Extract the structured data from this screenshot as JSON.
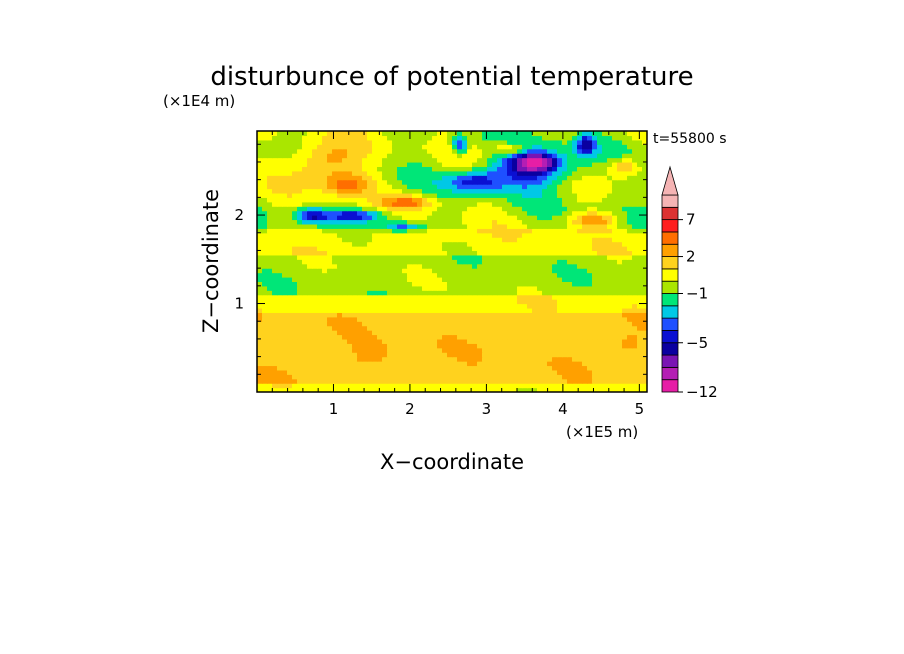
{
  "chart_data": {
    "type": "heatmap",
    "title": "disturbunce of potential temperature",
    "time_label": "t=55800 s",
    "xlabel": "X−coordinate",
    "ylabel": "Z−coordinate",
    "x_unit": "(×1E5 m)",
    "y_unit": "(×1E4 m)",
    "xlim": [
      0,
      5.1
    ],
    "ylim": [
      0,
      2.95
    ],
    "x_ticks": [
      1,
      2,
      3,
      4,
      5
    ],
    "x_tick_labels": [
      "1",
      "2",
      "3",
      "4",
      "5"
    ],
    "y_ticks": [
      1,
      2
    ],
    "y_tick_labels": [
      "1",
      "2"
    ],
    "colorbar": {
      "levels": [
        -12,
        -10,
        -8,
        -6,
        -5,
        -4,
        -3,
        -2,
        -1,
        0,
        1,
        2,
        3,
        5,
        7,
        9,
        11
      ],
      "colors": [
        "#e61ea6",
        "#b41eb4",
        "#7a14b4",
        "#0a00a0",
        "#0a10d2",
        "#1e50ff",
        "#00c8e6",
        "#00e678",
        "#aae600",
        "#ffff00",
        "#ffd21e",
        "#ffa000",
        "#ff6e00",
        "#ff1e1e",
        "#dc3232",
        "#f5b4b4"
      ],
      "tick_values": [
        -12,
        -5,
        -1,
        2,
        7
      ],
      "tick_labels": [
        "−12",
        "−5",
        "−1",
        "2",
        "7"
      ],
      "extend": "max"
    },
    "field": {
      "description_rows": "z bands from bottom to top",
      "bands": [
        {
          "z_range": [
            0.0,
            0.12
          ],
          "value": 0.5
        },
        {
          "z_range": [
            0.12,
            0.9
          ],
          "value": 1.6
        },
        {
          "z_range": [
            0.9,
            1.1
          ],
          "value": 0.6
        },
        {
          "z_range": [
            1.1,
            1.55
          ],
          "value": -0.5
        },
        {
          "z_range": [
            1.55,
            1.85
          ],
          "value": 0.5
        },
        {
          "z_range": [
            1.85,
            2.95
          ],
          "value": -0.3
        }
      ],
      "features": [
        {
          "x": 3.6,
          "z": 2.55,
          "rx": 0.55,
          "rz": 0.22,
          "value": -5.5
        },
        {
          "x": 3.65,
          "z": 2.6,
          "rx": 0.22,
          "rz": 0.08,
          "value": -8
        },
        {
          "x": 2.85,
          "z": 2.38,
          "rx": 0.35,
          "rz": 0.12,
          "value": -4.5
        },
        {
          "x": 4.3,
          "z": 2.8,
          "rx": 0.12,
          "rz": 0.12,
          "value": -5
        },
        {
          "x": 2.65,
          "z": 2.8,
          "rx": 0.1,
          "rz": 0.1,
          "value": -5
        },
        {
          "x": 1.3,
          "z": 2.0,
          "rx": 0.45,
          "rz": 0.07,
          "value": -4.5
        },
        {
          "x": 0.7,
          "z": 2.0,
          "rx": 0.2,
          "rz": 0.08,
          "value": -4.5
        },
        {
          "x": 1.9,
          "z": 1.87,
          "rx": 0.25,
          "rz": 0.06,
          "value": -4
        },
        {
          "x": 0.9,
          "z": 2.6,
          "rx": 0.45,
          "rz": 0.25,
          "value": 3.2
        },
        {
          "x": 1.2,
          "z": 2.35,
          "rx": 0.3,
          "rz": 0.12,
          "value": 3
        },
        {
          "x": 2.0,
          "z": 2.15,
          "rx": 0.35,
          "rz": 0.08,
          "value": 3
        },
        {
          "x": 4.4,
          "z": 1.95,
          "rx": 0.3,
          "rz": 0.08,
          "value": 3
        },
        {
          "x": 3.3,
          "z": 2.75,
          "rx": 0.25,
          "rz": 0.08,
          "value": 2.5
        },
        {
          "x": 4.8,
          "z": 2.55,
          "rx": 0.2,
          "rz": 0.1,
          "value": 2.5
        },
        {
          "x": 1.5,
          "z": 0.45,
          "rx": 0.2,
          "rz": 0.12,
          "value": 2.8
        },
        {
          "x": 4.85,
          "z": 0.55,
          "rx": 0.15,
          "rz": 0.1,
          "value": 2.6
        }
      ]
    }
  }
}
